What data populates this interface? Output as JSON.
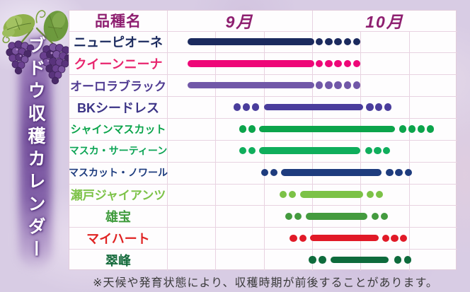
{
  "title": "ブドウ収穫カレンダー",
  "header": {
    "variety_col": "品種名",
    "months": [
      "9月",
      "10月"
    ]
  },
  "footnote": "※天候や発育状態により、収穫時期が前後することがあります。",
  "colors": {
    "background": "#d8cce4",
    "table_background": "#fefdfe",
    "grid_line": "#e8d3e1",
    "header_text": "#8e1f70",
    "banner_glow": "#6c4696",
    "banner_text": "#ffffff",
    "footnote_text": "#3a3a3a"
  },
  "icons": {
    "grape_illustration": "grape-bunches-with-leaves-and-tendrils"
  },
  "chart_data": {
    "type": "gantt-timeline",
    "title": "ブドウ収穫カレンダー",
    "axis": {
      "unit": "month-thirds (1 unit = ~10 days)",
      "xlim": [
        0,
        6
      ],
      "months": [
        {
          "label": "9月",
          "span": [
            0,
            3
          ]
        },
        {
          "label": "10月",
          "span": [
            3,
            6
          ]
        }
      ],
      "grid": true
    },
    "encoding": {
      "solid_bar": "main harvest period",
      "dots": "marginal harvest period"
    },
    "rows": [
      {
        "name": "ニューピオーネ",
        "color": "#1b2a5e",
        "name_color": "#1b2a5e",
        "bar": [
          0.42,
          3.04
        ],
        "dots_before": null,
        "dots_after": {
          "count": 5,
          "from": 3.15,
          "to": 3.92
        }
      },
      {
        "name": "クイーンニーナ",
        "color": "#ee0778",
        "name_color": "#e8256e",
        "bar": [
          0.42,
          3.04
        ],
        "dots_before": null,
        "dots_after": {
          "count": 5,
          "from": 3.15,
          "to": 3.92
        }
      },
      {
        "name": "オーロラブラック",
        "color": "#7158a8",
        "name_color": "#503b92",
        "bar": [
          0.42,
          3.04
        ],
        "dots_before": null,
        "dots_after": {
          "count": 5,
          "from": 3.15,
          "to": 3.92
        }
      },
      {
        "name": "BKシードレス",
        "color": "#4a3d9c",
        "name_color": "#3b3386",
        "bar": [
          2.0,
          4.05
        ],
        "dots_before": {
          "count": 3,
          "from": 1.45,
          "to": 1.83
        },
        "dots_after": {
          "count": 3,
          "from": 4.19,
          "to": 4.57
        }
      },
      {
        "name": "シャインマスカット",
        "color": "#0ba44b",
        "name_color": "#0ba44b",
        "bar": [
          1.9,
          4.71
        ],
        "dots_before": {
          "count": 2,
          "from": 1.57,
          "to": 1.76
        },
        "dots_after": {
          "count": 4,
          "from": 4.87,
          "to": 5.44
        }
      },
      {
        "name": "マスカ・サーティーン",
        "color": "#0fae5c",
        "name_color": "#0ca455",
        "bar": [
          1.9,
          4.0
        ],
        "dots_before": {
          "count": 2,
          "from": 1.57,
          "to": 1.76
        },
        "dots_after": {
          "count": 3,
          "from": 4.17,
          "to": 4.54
        }
      },
      {
        "name": "マスカット・ノワール",
        "color": "#1e3c7e",
        "name_color": "#1e3c7e",
        "bar": [
          2.36,
          4.43
        ],
        "dots_before": {
          "count": 2,
          "from": 2.02,
          "to": 2.21
        },
        "dots_after": {
          "count": 3,
          "from": 4.6,
          "to": 4.99
        }
      },
      {
        "name": "瀬戸ジャイアンツ",
        "color": "#7cc247",
        "name_color": "#7cc247",
        "bar": [
          2.75,
          4.05
        ],
        "dots_before": {
          "count": 2,
          "from": 2.4,
          "to": 2.59
        },
        "dots_after": {
          "count": 2,
          "from": 4.2,
          "to": 4.39
        }
      },
      {
        "name": "雄宝",
        "color": "#449b3f",
        "name_color": "#3f9b3c",
        "bar": [
          2.87,
          4.14
        ],
        "dots_before": {
          "count": 2,
          "from": 2.52,
          "to": 2.71
        },
        "dots_after": {
          "count": 2,
          "from": 4.3,
          "to": 4.49
        }
      },
      {
        "name": "マイハート",
        "color": "#e11927",
        "name_color": "#e02424",
        "bar": [
          2.96,
          4.38
        ],
        "dots_before": {
          "count": 2,
          "from": 2.61,
          "to": 2.81
        },
        "dots_after": {
          "count": 3,
          "from": 4.52,
          "to": 4.89
        }
      },
      {
        "name": "翠峰",
        "color": "#0e6b3c",
        "name_color": "#156b3c",
        "bar": [
          3.38,
          4.58
        ],
        "dots_before": {
          "count": 2,
          "from": 3.01,
          "to": 3.21
        },
        "dots_after": {
          "count": 2,
          "from": 4.77,
          "to": 4.98
        }
      }
    ]
  }
}
